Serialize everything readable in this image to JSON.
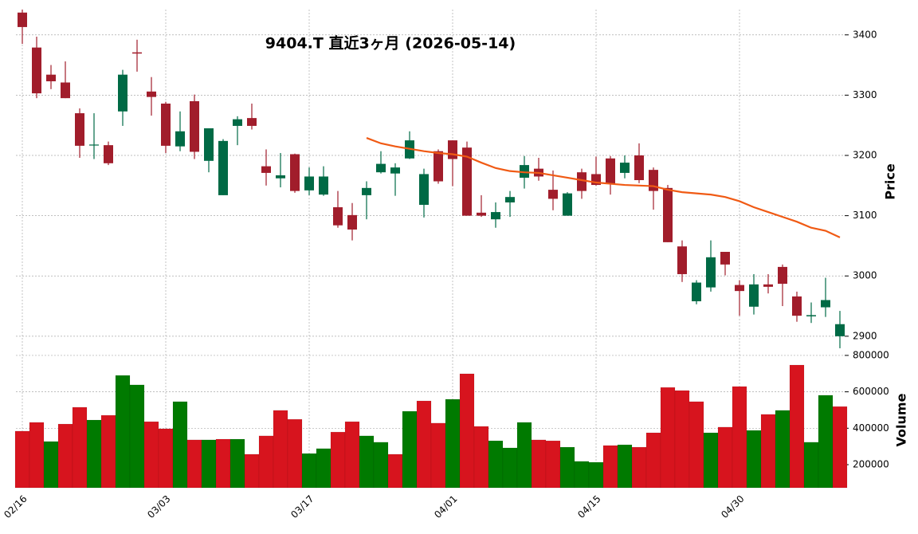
{
  "chart_data": {
    "type": "candlestick",
    "title": "9404.T  直近3ヶ月 (2026-05-14)",
    "categories": [
      "02/16",
      null,
      null,
      null,
      null,
      null,
      null,
      null,
      null,
      null,
      "03/03",
      null,
      null,
      null,
      null,
      null,
      null,
      null,
      null,
      null,
      "03/17",
      null,
      null,
      null,
      null,
      null,
      null,
      null,
      null,
      null,
      "04/01",
      null,
      null,
      null,
      null,
      null,
      null,
      null,
      null,
      null,
      "04/15",
      null,
      null,
      null,
      null,
      null,
      null,
      null,
      null,
      null,
      "04/30",
      null,
      null,
      null,
      null,
      null,
      null,
      null
    ],
    "open": [
      3437,
      3379,
      3334,
      3321,
      3270,
      3217,
      3217,
      3273,
      3371,
      3306,
      3286,
      3215,
      3290,
      3191,
      3134,
      3249,
      3262,
      3182,
      3162,
      3202,
      3142,
      3135,
      3114,
      3101,
      3134,
      3172,
      3170,
      3195,
      3118,
      3207,
      3225,
      3213,
      3105,
      3094,
      3122,
      3163,
      3178,
      3143,
      3100,
      3172,
      3169,
      3195,
      3171,
      3200,
      3176,
      3146,
      3049,
      2958,
      2981,
      3040,
      2985,
      2949,
      2986,
      3015,
      2966,
      2933,
      2948,
      2900
    ],
    "high": [
      3442,
      3397,
      3350,
      3356,
      3278,
      3270,
      3223,
      3342,
      3392,
      3330,
      3289,
      3273,
      3301,
      3245,
      3227,
      3265,
      3286,
      3210,
      3204,
      3203,
      3180,
      3182,
      3141,
      3121,
      3157,
      3207,
      3187,
      3240,
      3178,
      3210,
      3225,
      3223,
      3134,
      3122,
      3141,
      3199,
      3196,
      3175,
      3139,
      3178,
      3198,
      3199,
      3200,
      3220,
      3180,
      3151,
      3059,
      2993,
      3059,
      3040,
      2993,
      3003,
      3003,
      3019,
      2974,
      2956,
      2997,
      2942
    ],
    "low": [
      3385,
      3295,
      3310,
      3295,
      3196,
      3194,
      3184,
      3249,
      3339,
      3266,
      3204,
      3207,
      3194,
      3172,
      3134,
      3217,
      3243,
      3150,
      3147,
      3138,
      3134,
      3133,
      3080,
      3059,
      3094,
      3170,
      3133,
      3194,
      3097,
      3153,
      3149,
      3100,
      3098,
      3080,
      3098,
      3145,
      3158,
      3109,
      3100,
      3128,
      3150,
      3135,
      3162,
      3154,
      3110,
      3056,
      2990,
      2953,
      2974,
      3001,
      2934,
      2936,
      2971,
      2950,
      2924,
      2922,
      2932,
      2880
    ],
    "close": [
      3413,
      3303,
      3323,
      3295,
      3216,
      3218,
      3187,
      3334,
      3369,
      3297,
      3216,
      3240,
      3206,
      3245,
      3224,
      3260,
      3249,
      3171,
      3167,
      3141,
      3165,
      3165,
      3084,
      3077,
      3146,
      3186,
      3180,
      3225,
      3169,
      3157,
      3194,
      3100,
      3100,
      3106,
      3131,
      3184,
      3165,
      3128,
      3137,
      3141,
      3151,
      3153,
      3188,
      3159,
      3141,
      3056,
      3003,
      2989,
      3031,
      3019,
      2975,
      2986,
      2982,
      2987,
      2934,
      2935,
      2960,
      2920
    ],
    "up_color": "#006a45",
    "down_color": "#a11d2b",
    "line": {
      "color": "#f05a14",
      "values": [
        null,
        null,
        null,
        null,
        null,
        null,
        null,
        null,
        null,
        null,
        null,
        null,
        null,
        null,
        null,
        null,
        null,
        null,
        null,
        null,
        null,
        null,
        null,
        null,
        3229,
        3220,
        3215,
        3211,
        3207,
        3204,
        3202,
        3198,
        3188,
        3179,
        3174,
        3172,
        3171,
        3167,
        3163,
        3159,
        3155,
        3153,
        3151,
        3150,
        3149,
        3143,
        3139,
        3137,
        3135,
        3131,
        3124,
        3114,
        3106,
        3098,
        3090,
        3080,
        3075,
        3064
      ]
    },
    "ylabel": "Price",
    "ylim": [
      2876,
      3442
    ],
    "yticks": [
      2900,
      3000,
      3100,
      3200,
      3300,
      3400
    ],
    "grid": true,
    "volume": {
      "ylabel": "Volume",
      "values": [
        384000,
        432000,
        327000,
        423000,
        515000,
        445000,
        471000,
        690000,
        638000,
        436000,
        397000,
        546000,
        336000,
        336000,
        340000,
        340000,
        257000,
        358000,
        498000,
        449000,
        261000,
        288000,
        379000,
        436000,
        358000,
        323000,
        257000,
        493000,
        550000,
        428000,
        559000,
        699000,
        410000,
        331000,
        292000,
        432000,
        336000,
        331000,
        296000,
        218000,
        213000,
        305000,
        309000,
        296000,
        375000,
        624000,
        607000,
        546000,
        375000,
        406000,
        629000,
        388000,
        476000,
        498000,
        747000,
        323000,
        581000,
        519000
      ],
      "colors": [
        "#d7141e",
        "#d7141e",
        "#007a00",
        "#d7141e",
        "#d7141e",
        "#007a00",
        "#d7141e",
        "#007a00",
        "#007a00",
        "#d7141e",
        "#d7141e",
        "#007a00",
        "#d7141e",
        "#007a00",
        "#d7141e",
        "#007a00",
        "#d7141e",
        "#d7141e",
        "#d7141e",
        "#d7141e",
        "#007a00",
        "#007a00",
        "#d7141e",
        "#d7141e",
        "#007a00",
        "#007a00",
        "#d7141e",
        "#007a00",
        "#d7141e",
        "#d7141e",
        "#007a00",
        "#d7141e",
        "#d7141e",
        "#007a00",
        "#007a00",
        "#007a00",
        "#d7141e",
        "#d7141e",
        "#007a00",
        "#007a00",
        "#007a00",
        "#d7141e",
        "#007a00",
        "#d7141e",
        "#d7141e",
        "#d7141e",
        "#d7141e",
        "#d7141e",
        "#007a00",
        "#d7141e",
        "#d7141e",
        "#007a00",
        "#d7141e",
        "#007a00",
        "#d7141e",
        "#007a00",
        "#007a00",
        "#d7141e"
      ],
      "ylim": [
        73000,
        804000
      ],
      "yticks": [
        200000,
        400000,
        600000,
        800000
      ]
    }
  }
}
